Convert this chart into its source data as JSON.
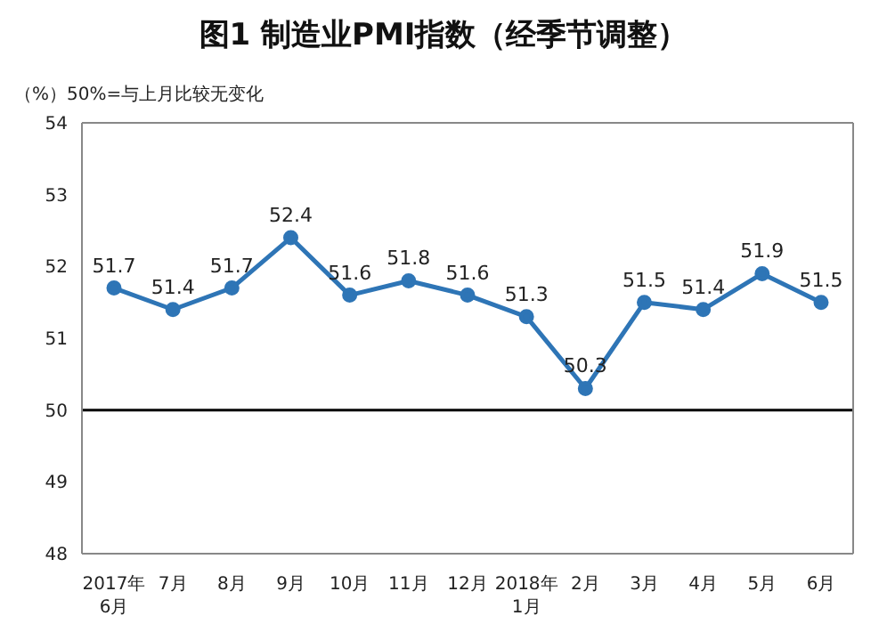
{
  "chart_data": {
    "type": "line",
    "title": "图1 制造业PMI指数（经季节调整）",
    "subtitle": "（%）50%=与上月比较无变化",
    "categories": [
      "2017年\n6月",
      "7月",
      "8月",
      "9月",
      "10月",
      "11月",
      "12月",
      "2018年\n1月",
      "2月",
      "3月",
      "4月",
      "5月",
      "6月"
    ],
    "series": [
      {
        "color": "#2e75b6",
        "values": [
          51.7,
          51.4,
          51.7,
          52.4,
          51.6,
          51.8,
          51.6,
          51.3,
          50.3,
          51.5,
          51.4,
          51.9,
          51.5
        ]
      }
    ],
    "ylim": [
      48,
      54
    ],
    "yticks": [
      48,
      49,
      50,
      51,
      52,
      53,
      54
    ],
    "grid": false,
    "legend": false,
    "marker": "circle",
    "line_style": "solid",
    "data_labels": true,
    "ref_lines": [
      {
        "axis": "y",
        "value": 50,
        "color": "#000000"
      }
    ]
  }
}
